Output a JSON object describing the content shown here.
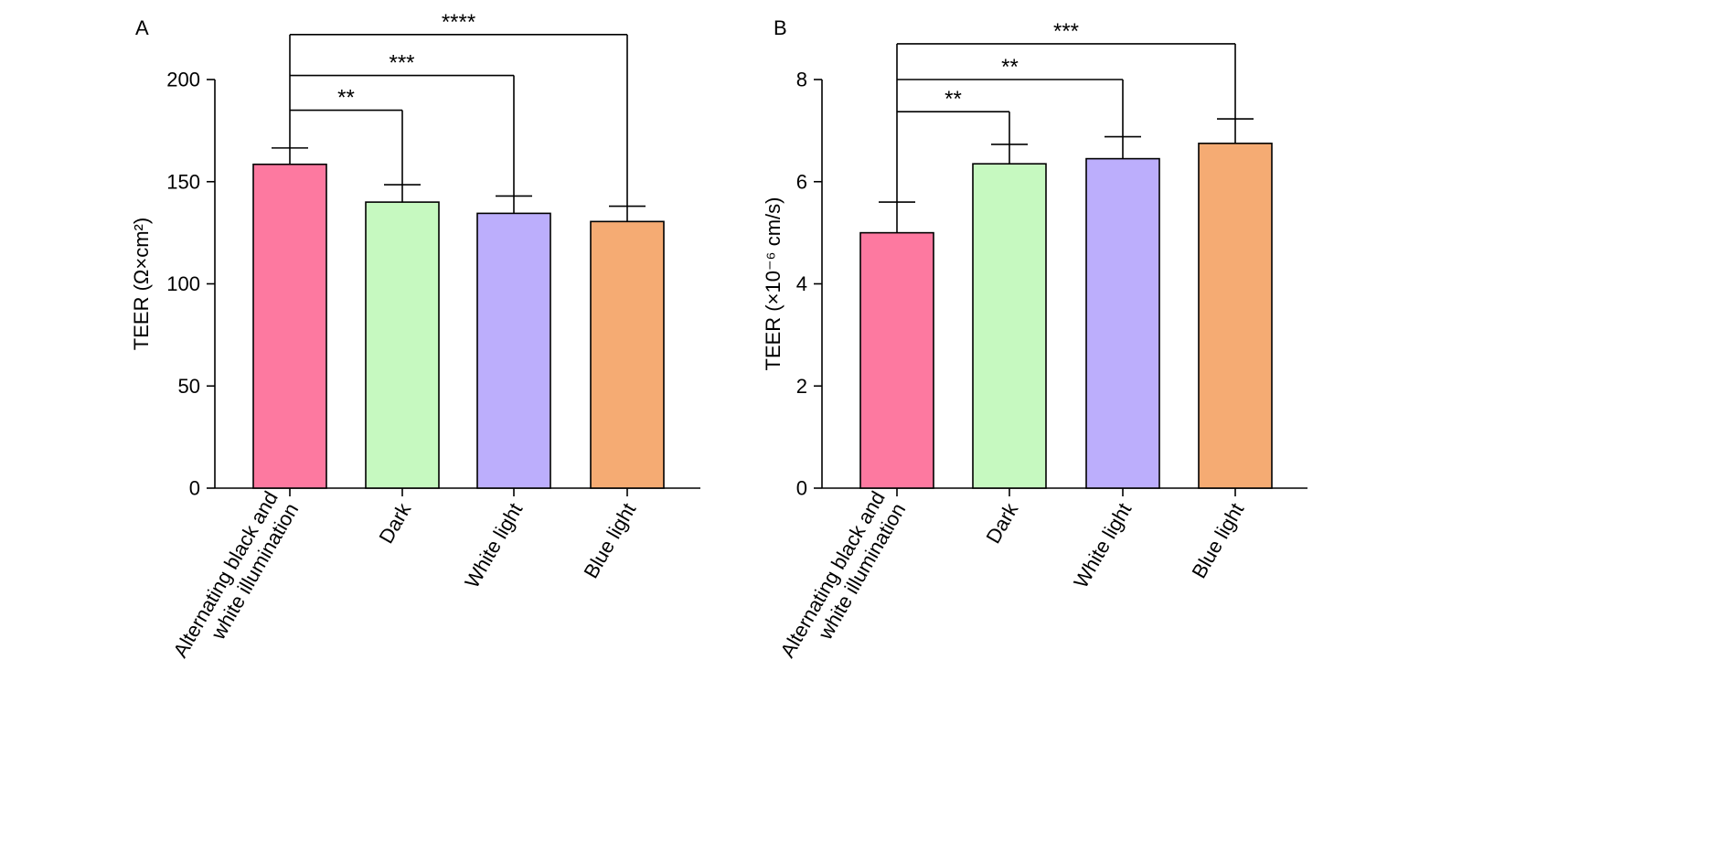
{
  "chart_data": [
    {
      "type": "bar",
      "panel_label": "A",
      "title": "",
      "xlabel": "",
      "ylabel": "TEER (Ω×cm²)",
      "ylim": [
        0,
        200
      ],
      "yticks": [
        0,
        50,
        100,
        150,
        200
      ],
      "categories": [
        "Alternating black and white illumination",
        "Dark",
        "White light",
        "Blue light"
      ],
      "category_lines": [
        [
          "Alternating black and",
          "white illumination"
        ],
        [
          "Dark"
        ],
        [
          "White light"
        ],
        [
          "Blue light"
        ]
      ],
      "values": [
        158.5,
        140,
        134.5,
        130.5
      ],
      "errors": [
        8,
        8.5,
        8.5,
        7.5
      ],
      "colors": [
        "#fd79a0",
        "#c6f9c0",
        "#bcaefc",
        "#f5ab73"
      ],
      "significance": [
        {
          "from": 0,
          "to": 1,
          "label": "**",
          "level": 185
        },
        {
          "from": 0,
          "to": 2,
          "label": "***",
          "level": 202
        },
        {
          "from": 0,
          "to": 3,
          "label": "****",
          "level": 222
        }
      ],
      "legend": "none",
      "grid": false
    },
    {
      "type": "bar",
      "panel_label": "B",
      "title": "",
      "xlabel": "",
      "ylabel": "TEER (×10⁻⁶ cm/s)",
      "ylim": [
        0,
        8
      ],
      "yticks": [
        0,
        2,
        4,
        6,
        8
      ],
      "categories": [
        "Alternating black and white illumination",
        "Dark",
        "White light",
        "Blue light"
      ],
      "category_lines": [
        [
          "Alternating black and",
          "white illumination"
        ],
        [
          "Dark"
        ],
        [
          "White light"
        ],
        [
          "Blue light"
        ]
      ],
      "values": [
        5.0,
        6.35,
        6.45,
        6.75
      ],
      "errors": [
        0.6,
        0.38,
        0.43,
        0.48
      ],
      "colors": [
        "#fd79a0",
        "#c6f9c0",
        "#bcaefc",
        "#f5ab73"
      ],
      "significance": [
        {
          "from": 0,
          "to": 1,
          "label": "**",
          "level": 7.37
        },
        {
          "from": 0,
          "to": 2,
          "label": "**",
          "level": 8.0
        },
        {
          "from": 0,
          "to": 3,
          "label": "***",
          "level": 8.7
        }
      ],
      "legend": "none",
      "grid": false
    }
  ]
}
